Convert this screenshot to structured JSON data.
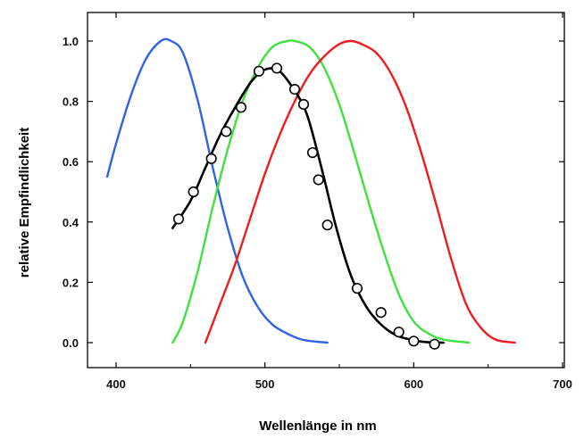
{
  "chart_data": {
    "type": "line",
    "title": "",
    "xlabel": "Wellenlänge in nm",
    "ylabel": "relative Empfindlichkeit",
    "xlim": [
      385,
      700
    ],
    "ylim": [
      -0.08,
      1.06
    ],
    "x_ticks": [
      "400",
      "500",
      "600",
      "700"
    ],
    "y_ticks": [
      "0.0",
      "0.2",
      "0.4",
      "0.6",
      "0.8",
      "1.0"
    ],
    "grid": false,
    "legend": "none",
    "series": [
      {
        "color": "#2f63e6",
        "x": [
          394,
          400,
          410,
          420,
          430,
          437,
          445,
          455,
          465,
          475,
          485,
          495,
          505,
          515,
          525,
          535,
          542
        ],
        "y": [
          0.55,
          0.66,
          0.82,
          0.94,
          1.0,
          1.0,
          0.96,
          0.8,
          0.58,
          0.38,
          0.22,
          0.12,
          0.06,
          0.03,
          0.01,
          0.003,
          0.0
        ]
      },
      {
        "color": "#40e040",
        "x": [
          438,
          445,
          455,
          465,
          475,
          485,
          495,
          505,
          515,
          520,
          530,
          540,
          550,
          560,
          570,
          580,
          590,
          600,
          610,
          620,
          637
        ],
        "y": [
          0.0,
          0.07,
          0.24,
          0.45,
          0.64,
          0.8,
          0.91,
          0.98,
          1.0,
          1.0,
          0.98,
          0.91,
          0.79,
          0.63,
          0.46,
          0.3,
          0.16,
          0.07,
          0.03,
          0.01,
          0.0
        ]
      },
      {
        "color": "#ee1c1c",
        "x": [
          460,
          470,
          480,
          490,
          500,
          510,
          520,
          530,
          540,
          550,
          558,
          565,
          575,
          585,
          595,
          605,
          615,
          625,
          635,
          645,
          655,
          668
        ],
        "y": [
          0.0,
          0.13,
          0.26,
          0.41,
          0.56,
          0.69,
          0.8,
          0.89,
          0.95,
          0.99,
          1.0,
          0.99,
          0.96,
          0.89,
          0.78,
          0.63,
          0.46,
          0.28,
          0.13,
          0.05,
          0.01,
          0.0
        ]
      },
      {
        "color": "#000000",
        "marker": "circle",
        "x": [
          438,
          450,
          460,
          470,
          480,
          490,
          498,
          505,
          510,
          518,
          528,
          538,
          548,
          558,
          568,
          578,
          588,
          598,
          608,
          620
        ],
        "y": [
          0.38,
          0.47,
          0.58,
          0.69,
          0.78,
          0.86,
          0.9,
          0.91,
          0.9,
          0.85,
          0.76,
          0.58,
          0.38,
          0.22,
          0.12,
          0.06,
          0.025,
          0.01,
          0.002,
          0.0
        ]
      }
    ],
    "points": {
      "x": [
        442,
        452,
        464,
        474,
        484,
        496,
        508,
        520,
        526,
        532,
        536,
        542,
        562,
        578,
        590,
        600,
        614
      ],
      "y": [
        0.41,
        0.5,
        0.61,
        0.7,
        0.78,
        0.9,
        0.91,
        0.84,
        0.79,
        0.63,
        0.54,
        0.39,
        0.18,
        0.1,
        0.035,
        0.005,
        -0.005
      ]
    }
  }
}
